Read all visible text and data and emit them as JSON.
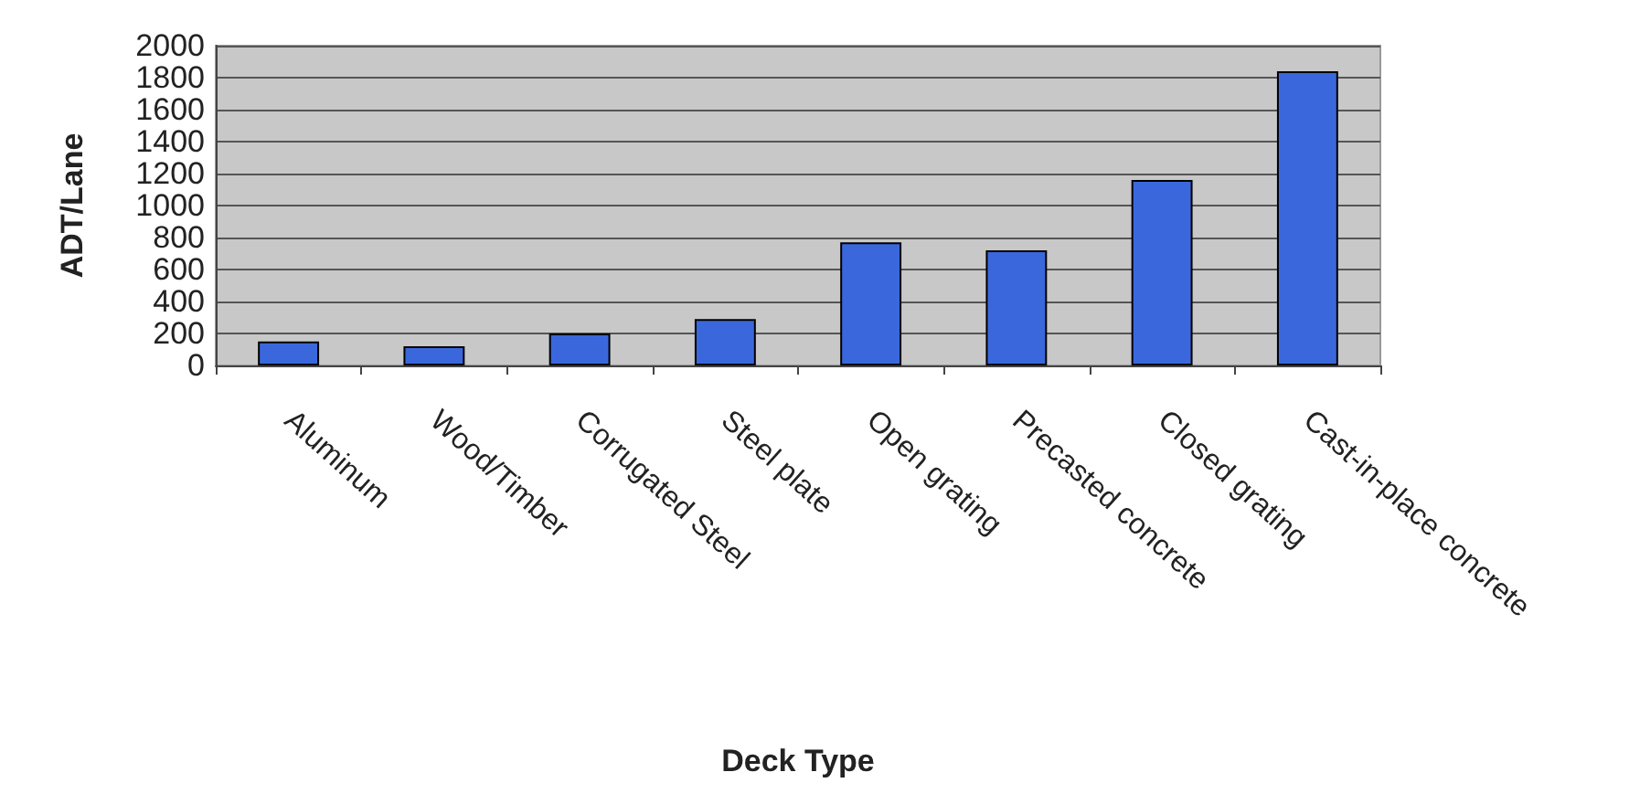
{
  "chart_data": {
    "type": "bar",
    "xlabel": "Deck Type",
    "ylabel": "ADT/Lane",
    "categories": [
      "Aluminum",
      "Wood/Timber",
      "Corrugated Steel",
      "Steel plate",
      "Open grating",
      "Precasted concrete",
      "Closed grating",
      "Cast-in-place concrete"
    ],
    "values": [
      150,
      120,
      200,
      290,
      770,
      720,
      1160,
      1840
    ],
    "color": "#3a68dc",
    "ylim": [
      0,
      2000
    ],
    "yticks": [
      0,
      200,
      400,
      600,
      800,
      1000,
      1200,
      1400,
      1600,
      1800,
      2000
    ],
    "grid": "y"
  }
}
